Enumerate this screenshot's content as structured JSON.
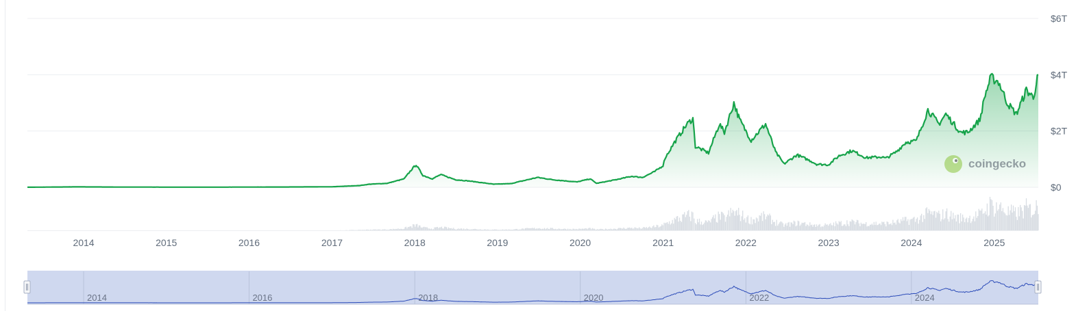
{
  "chart_data": {
    "type": "area",
    "y_axis": {
      "tick_labels": [
        "$0",
        "$2T",
        "$4T",
        "$6T"
      ],
      "ticks": [
        0,
        2,
        4,
        6
      ],
      "unit": "trillion USD",
      "ylim": [
        0,
        6
      ]
    },
    "x_axis": {
      "tick_labels": [
        "2014",
        "2015",
        "2016",
        "2017",
        "2018",
        "2019",
        "2020",
        "2021",
        "2022",
        "2023",
        "2024",
        "2025"
      ],
      "xlim": [
        "2013-04-28",
        "2025-07-14"
      ]
    },
    "series": [
      {
        "color": "#16a34a",
        "values": [
          {
            "x": "2013-04-28",
            "y": 0.0015
          },
          {
            "x": "2013-12-01",
            "y": 0.015
          },
          {
            "x": "2014-06-01",
            "y": 0.008
          },
          {
            "x": "2015-06-01",
            "y": 0.004
          },
          {
            "x": "2016-06-01",
            "y": 0.01
          },
          {
            "x": "2017-01-01",
            "y": 0.018
          },
          {
            "x": "2017-05-01",
            "y": 0.06
          },
          {
            "x": "2017-06-15",
            "y": 0.11
          },
          {
            "x": "2017-09-01",
            "y": 0.14
          },
          {
            "x": "2017-11-15",
            "y": 0.3
          },
          {
            "x": "2017-12-20",
            "y": 0.65
          },
          {
            "x": "2018-01-07",
            "y": 0.8
          },
          {
            "x": "2018-02-06",
            "y": 0.42
          },
          {
            "x": "2018-03-20",
            "y": 0.3
          },
          {
            "x": "2018-04-25",
            "y": 0.45
          },
          {
            "x": "2018-06-30",
            "y": 0.27
          },
          {
            "x": "2018-09-01",
            "y": 0.22
          },
          {
            "x": "2018-12-15",
            "y": 0.11
          },
          {
            "x": "2019-03-01",
            "y": 0.13
          },
          {
            "x": "2019-06-26",
            "y": 0.35
          },
          {
            "x": "2019-09-01",
            "y": 0.27
          },
          {
            "x": "2019-12-18",
            "y": 0.19
          },
          {
            "x": "2020-02-14",
            "y": 0.3
          },
          {
            "x": "2020-03-13",
            "y": 0.14
          },
          {
            "x": "2020-06-01",
            "y": 0.26
          },
          {
            "x": "2020-08-15",
            "y": 0.39
          },
          {
            "x": "2020-10-01",
            "y": 0.35
          },
          {
            "x": "2020-11-25",
            "y": 0.56
          },
          {
            "x": "2020-12-31",
            "y": 0.77
          },
          {
            "x": "2021-01-10",
            "y": 1.05
          },
          {
            "x": "2021-02-20",
            "y": 1.6
          },
          {
            "x": "2021-04-14",
            "y": 2.22
          },
          {
            "x": "2021-05-12",
            "y": 2.45
          },
          {
            "x": "2021-05-23",
            "y": 1.45
          },
          {
            "x": "2021-07-20",
            "y": 1.22
          },
          {
            "x": "2021-09-06",
            "y": 2.25
          },
          {
            "x": "2021-09-28",
            "y": 1.95
          },
          {
            "x": "2021-11-09",
            "y": 3.0
          },
          {
            "x": "2021-12-04",
            "y": 2.4
          },
          {
            "x": "2022-01-24",
            "y": 1.67
          },
          {
            "x": "2022-03-29",
            "y": 2.25
          },
          {
            "x": "2022-05-12",
            "y": 1.25
          },
          {
            "x": "2022-06-18",
            "y": 0.83
          },
          {
            "x": "2022-08-14",
            "y": 1.15
          },
          {
            "x": "2022-10-15",
            "y": 0.93
          },
          {
            "x": "2022-11-09",
            "y": 0.82
          },
          {
            "x": "2022-12-31",
            "y": 0.8
          },
          {
            "x": "2023-02-16",
            "y": 1.12
          },
          {
            "x": "2023-04-14",
            "y": 1.3
          },
          {
            "x": "2023-06-15",
            "y": 1.05
          },
          {
            "x": "2023-08-20",
            "y": 1.08
          },
          {
            "x": "2023-09-11",
            "y": 1.03
          },
          {
            "x": "2023-10-25",
            "y": 1.25
          },
          {
            "x": "2023-12-08",
            "y": 1.6
          },
          {
            "x": "2024-01-23",
            "y": 1.65
          },
          {
            "x": "2024-03-14",
            "y": 2.75
          },
          {
            "x": "2024-05-01",
            "y": 2.25
          },
          {
            "x": "2024-06-01",
            "y": 2.6
          },
          {
            "x": "2024-08-05",
            "y": 1.95
          },
          {
            "x": "2024-09-06",
            "y": 1.95
          },
          {
            "x": "2024-10-29",
            "y": 2.4
          },
          {
            "x": "2024-11-22",
            "y": 3.3
          },
          {
            "x": "2024-12-17",
            "y": 3.9
          },
          {
            "x": "2025-01-20",
            "y": 3.75
          },
          {
            "x": "2025-02-27",
            "y": 3.0
          },
          {
            "x": "2025-04-08",
            "y": 2.6
          },
          {
            "x": "2025-05-22",
            "y": 3.45
          },
          {
            "x": "2025-06-22",
            "y": 3.2
          },
          {
            "x": "2025-07-14",
            "y": 4.0
          }
        ]
      }
    ],
    "volume": {
      "color": "#d8dde3",
      "note_visible": ""
    },
    "navigator": {
      "tick_labels": [
        "2014",
        "2016",
        "2018",
        "2020",
        "2022",
        "2024"
      ],
      "line_color": "#2a4ab8",
      "selection_color": "#cfd8ef"
    },
    "watermark": "coingecko",
    "grid": true
  },
  "colors": {
    "line": "#16a34a",
    "area_top": "#16a34a",
    "grid": "#eceef1",
    "axis_text": "#5f6b7a"
  }
}
